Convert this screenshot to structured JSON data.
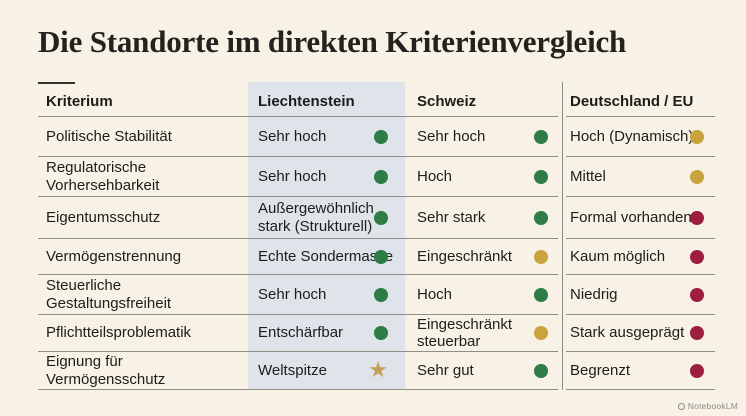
{
  "title": "Die Standorte im direkten Kriterienvergleich",
  "chart_data": {
    "type": "table",
    "title": "Die Standorte im direkten Kriterienvergleich",
    "columns": [
      "Kriterium",
      "Liechtenstein",
      "Schweiz",
      "Deutschland / EU"
    ],
    "highlighted_column": "Liechtenstein",
    "status_colors": {
      "green": "#2e7d46",
      "yellow": "#c9a33c",
      "red": "#9c1f3f",
      "star": "#c4a15b"
    },
    "rows": [
      {
        "kriterium": "Politische Stabilität",
        "liechtenstein": {
          "text": "Sehr hoch",
          "status": "green"
        },
        "schweiz": {
          "text": "Sehr hoch",
          "status": "green"
        },
        "deutschland": {
          "text": "Hoch (Dynamisch)",
          "status": "yellow"
        }
      },
      {
        "kriterium": "Regulatorische\nVorhersehbarkeit",
        "liechtenstein": {
          "text": "Sehr hoch",
          "status": "green"
        },
        "schweiz": {
          "text": "Hoch",
          "status": "green"
        },
        "deutschland": {
          "text": "Mittel",
          "status": "yellow"
        }
      },
      {
        "kriterium": "Eigentumsschutz",
        "liechtenstein": {
          "text": "Außergewöhnlich\nstark (Strukturell)",
          "status": "green"
        },
        "schweiz": {
          "text": "Sehr stark",
          "status": "green"
        },
        "deutschland": {
          "text": "Formal vorhanden",
          "status": "red"
        }
      },
      {
        "kriterium": "Vermögenstrennung",
        "liechtenstein": {
          "text": "Echte Sondermasse",
          "status": "green"
        },
        "schweiz": {
          "text": "Eingeschränkt",
          "status": "yellow"
        },
        "deutschland": {
          "text": "Kaum möglich",
          "status": "red"
        }
      },
      {
        "kriterium": "Steuerliche\nGestaltungsfreiheit",
        "liechtenstein": {
          "text": "Sehr hoch",
          "status": "green"
        },
        "schweiz": {
          "text": "Hoch",
          "status": "green"
        },
        "deutschland": {
          "text": "Niedrig",
          "status": "red"
        }
      },
      {
        "kriterium": "Pflichtteilsproblematik",
        "liechtenstein": {
          "text": "Entschärfbar",
          "status": "green"
        },
        "schweiz": {
          "text": "Eingeschränkt\nsteuerbar",
          "status": "yellow"
        },
        "deutschland": {
          "text": "Stark ausgeprägt",
          "status": "red"
        }
      },
      {
        "kriterium": "Eignung für\nVermögensschutz",
        "liechtenstein": {
          "text": "Weltspitze",
          "status": "star"
        },
        "schweiz": {
          "text": "Sehr gut",
          "status": "green"
        },
        "deutschland": {
          "text": "Begrenzt",
          "status": "red"
        }
      }
    ]
  },
  "footer": {
    "brand": "NotebookLM"
  }
}
